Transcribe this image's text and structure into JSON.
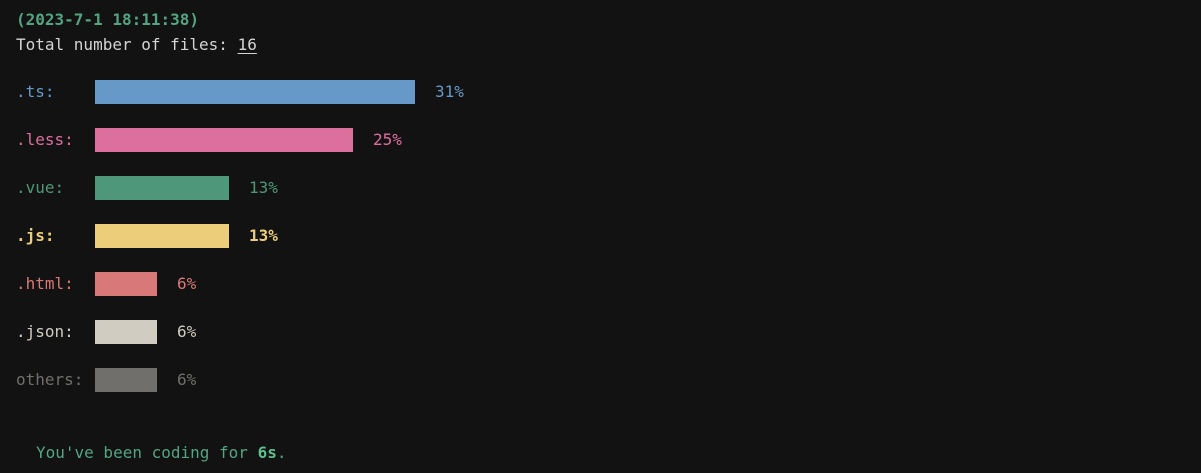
{
  "header": {
    "timestamp": "(2023-7-1 18:11:38)",
    "total_label": "Total number of files:",
    "total_count": "16"
  },
  "stats": [
    {
      "ext": ".ts:",
      "percent": "31%",
      "value": 31,
      "color": "#6699c8",
      "bold": false
    },
    {
      "ext": ".less:",
      "percent": "25%",
      "value": 25,
      "color": "#dc6f9d",
      "bold": false
    },
    {
      "ext": ".vue:",
      "percent": "13%",
      "value": 13,
      "color": "#4f977a",
      "bold": false
    },
    {
      "ext": ".js:",
      "percent": "13%",
      "value": 13,
      "color": "#ebcd7a",
      "bold": true
    },
    {
      "ext": ".html:",
      "percent": "6%",
      "value": 6,
      "color": "#d97878",
      "bold": false
    },
    {
      "ext": ".json:",
      "percent": "6%",
      "value": 6,
      "color": "#d0ccc1",
      "bold": false
    },
    {
      "ext": "others:",
      "percent": "6%",
      "value": 6,
      "color": "#716f6b",
      "bold": false
    }
  ],
  "footer": {
    "prefix": "You've been coding for",
    "duration": "6s",
    "suffix": "."
  },
  "colors": {
    "background": "#121212",
    "timestamp": "#54a483",
    "text": "#d4d4d4",
    "footer": "#54a483",
    "footer_strong": "#5fc08f"
  }
}
